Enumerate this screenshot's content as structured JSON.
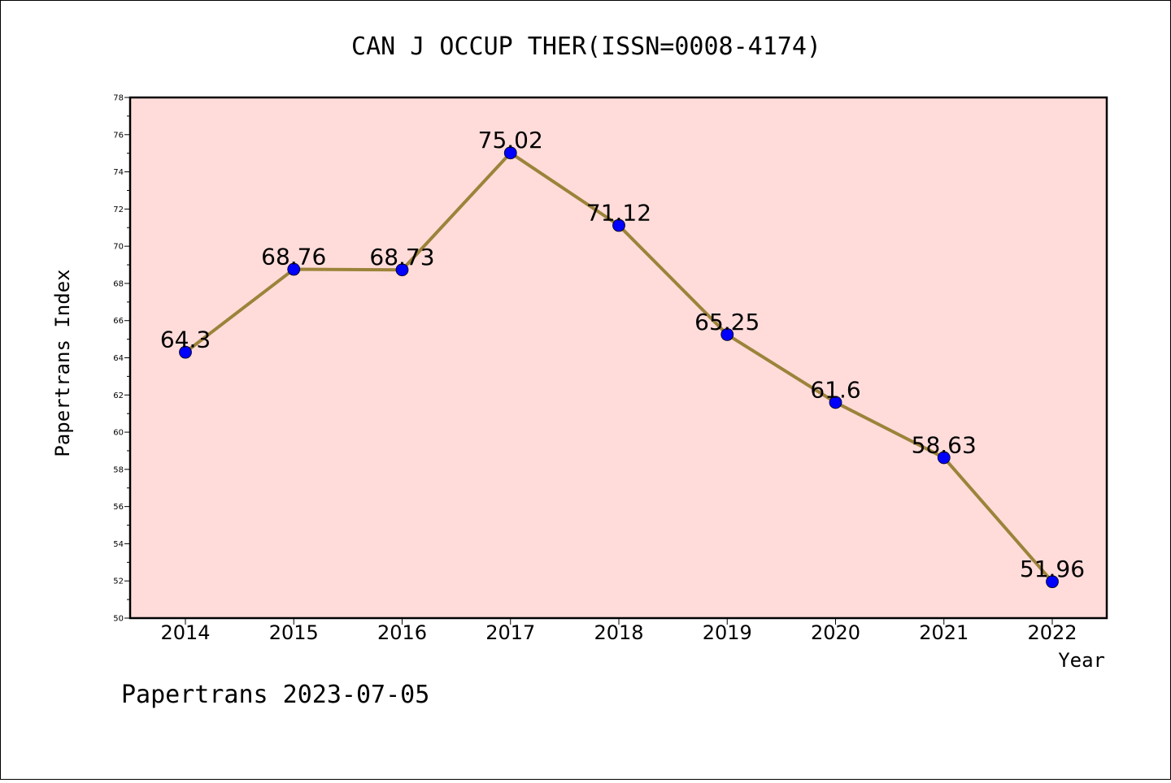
{
  "chart_data": {
    "type": "line",
    "title": "CAN J OCCUP THER(ISSN=0008-4174)",
    "xlabel": "Year",
    "ylabel": "Papertrans Index",
    "categories": [
      "2014",
      "2015",
      "2016",
      "2017",
      "2018",
      "2019",
      "2020",
      "2021",
      "2022"
    ],
    "series": [
      {
        "values": [
          64.3,
          68.76,
          68.73,
          75.02,
          71.12,
          65.25,
          61.6,
          58.63,
          51.96
        ],
        "data_labels": [
          "64.3",
          "68.76",
          "68.73",
          "75.02",
          "71.12",
          "65.25",
          "61.6",
          "58.63",
          "51.96"
        ]
      }
    ],
    "ylim": [
      50,
      78
    ],
    "yticks": [
      "50",
      "52",
      "54",
      "56",
      "58",
      "60",
      "62",
      "64",
      "66",
      "68",
      "70",
      "72",
      "74",
      "76",
      "78"
    ],
    "grid": false,
    "legend": "none",
    "colors": {
      "plot_background": "#FFDCDA",
      "line": "#9C833A",
      "marker": "#0000FF"
    }
  },
  "footer": "Papertrans 2023-07-05"
}
